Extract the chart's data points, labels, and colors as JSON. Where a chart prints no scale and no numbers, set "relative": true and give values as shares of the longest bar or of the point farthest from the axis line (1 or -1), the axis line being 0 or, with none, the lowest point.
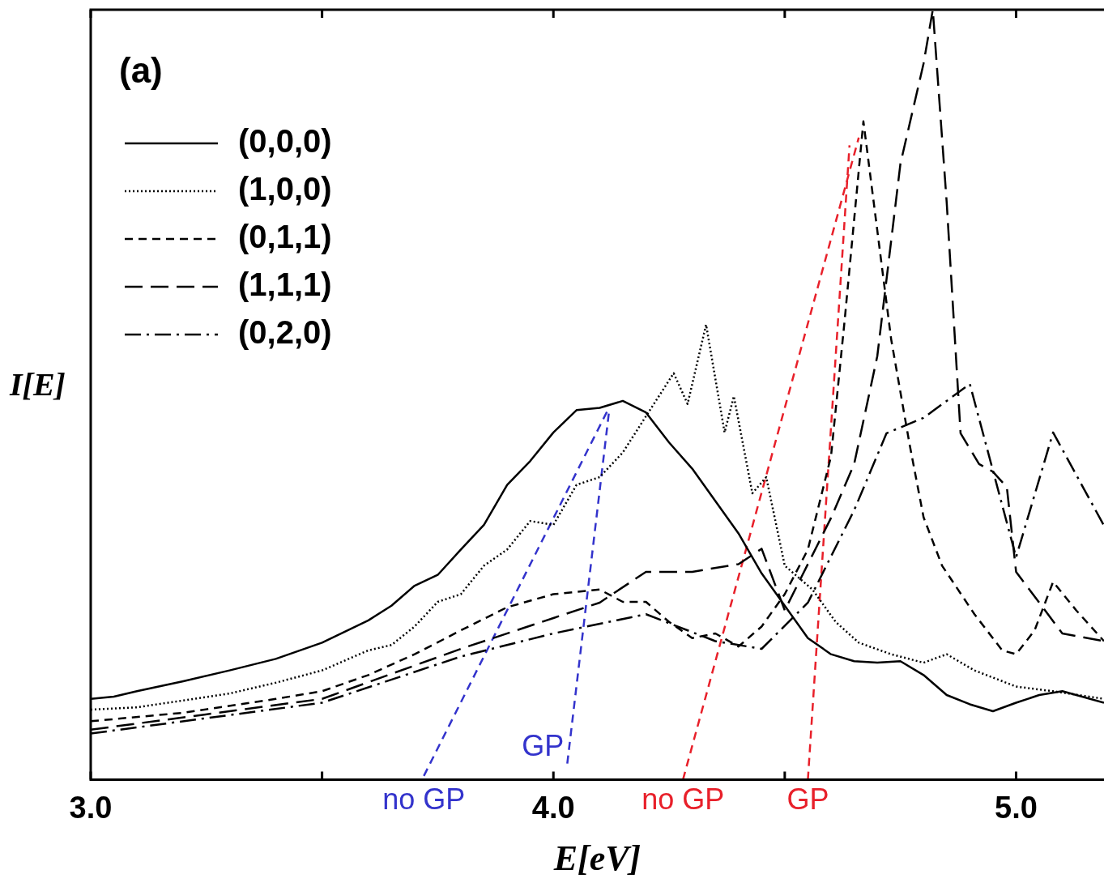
{
  "chart_data": {
    "type": "line",
    "relative": true,
    "xlabel": "E[eV]",
    "ylabel": "I[E]",
    "legend": "top left",
    "grid": false,
    "marker": "none",
    "tick_labels": "x",
    "xlim": [
      3.0,
      5.19
    ],
    "xticks": [
      {
        "value": 3.0,
        "label": "3.0"
      },
      {
        "value": 3.5,
        "label": null
      },
      {
        "value": 4.0,
        "label": "4.0"
      },
      {
        "value": 4.5,
        "label": null
      },
      {
        "value": 5.0,
        "label": "5.0"
      }
    ],
    "annotations": [
      "(a)",
      {
        "text": "no GP",
        "x": 3.72,
        "y": 0
      },
      {
        "text": "GP",
        "x": 4.03,
        "y": 0.021
      },
      {
        "text": "no GP",
        "x": 4.28,
        "y": 0
      },
      {
        "text": "GP",
        "x": 4.55,
        "y": 0
      }
    ],
    "series": [
      {
        "name": "(0,0,0)",
        "color": "#000000",
        "line_style": "solid",
        "x": [
          3.0,
          3.05,
          3.1,
          3.2,
          3.3,
          3.4,
          3.5,
          3.6,
          3.65,
          3.7,
          3.75,
          3.8,
          3.85,
          3.9,
          3.95,
          4.0,
          4.05,
          4.1,
          4.15,
          4.2,
          4.25,
          4.3,
          4.35,
          4.4,
          4.45,
          4.5,
          4.55,
          4.6,
          4.65,
          4.7,
          4.75,
          4.8,
          4.85,
          4.9,
          4.95,
          5.0,
          5.05,
          5.1,
          5.19
        ],
        "values": [
          0.105,
          0.108,
          0.115,
          0.128,
          0.142,
          0.157,
          0.178,
          0.207,
          0.226,
          0.252,
          0.266,
          0.299,
          0.331,
          0.383,
          0.414,
          0.451,
          0.48,
          0.483,
          0.492,
          0.477,
          0.438,
          0.404,
          0.362,
          0.32,
          0.268,
          0.226,
          0.184,
          0.163,
          0.154,
          0.152,
          0.154,
          0.136,
          0.11,
          0.098,
          0.089,
          0.1,
          0.11,
          0.115,
          0.1
        ]
      },
      {
        "name": "(1,0,0)",
        "color": "#000000",
        "line_style": "dotted",
        "x": [
          3.0,
          3.1,
          3.2,
          3.3,
          3.4,
          3.5,
          3.6,
          3.65,
          3.7,
          3.75,
          3.8,
          3.85,
          3.9,
          3.95,
          4.0,
          4.05,
          4.1,
          4.15,
          4.2,
          4.26,
          4.29,
          4.33,
          4.37,
          4.39,
          4.43,
          4.46,
          4.5,
          4.56,
          4.61,
          4.66,
          4.73,
          4.8,
          4.85,
          4.91,
          5.0,
          5.08,
          5.19
        ],
        "values": [
          0.091,
          0.094,
          0.103,
          0.112,
          0.126,
          0.142,
          0.168,
          0.175,
          0.199,
          0.231,
          0.241,
          0.278,
          0.299,
          0.336,
          0.331,
          0.383,
          0.393,
          0.425,
          0.472,
          0.528,
          0.488,
          0.591,
          0.451,
          0.498,
          0.372,
          0.393,
          0.278,
          0.247,
          0.205,
          0.178,
          0.163,
          0.152,
          0.163,
          0.142,
          0.121,
          0.115,
          0.105
        ]
      },
      {
        "name": "(0,1,1)",
        "color": "#000000",
        "line_style": "dashed",
        "x": [
          3.0,
          3.2,
          3.4,
          3.5,
          3.6,
          3.7,
          3.8,
          3.9,
          4.0,
          4.1,
          4.15,
          4.2,
          4.25,
          4.3,
          4.35,
          4.4,
          4.45,
          4.5,
          4.55,
          4.6,
          4.63,
          4.67,
          4.73,
          4.77,
          4.8,
          4.84,
          4.91,
          4.97,
          5.0,
          5.04,
          5.08,
          5.13,
          5.19
        ],
        "values": [
          0.076,
          0.087,
          0.105,
          0.115,
          0.136,
          0.163,
          0.194,
          0.224,
          0.241,
          0.247,
          0.231,
          0.231,
          0.205,
          0.184,
          0.19,
          0.173,
          0.199,
          0.241,
          0.299,
          0.42,
          0.6,
          0.855,
          0.572,
          0.435,
          0.341,
          0.278,
          0.215,
          0.168,
          0.163,
          0.194,
          0.257,
          0.22,
          0.18
        ]
      },
      {
        "name": "(1,1,1)",
        "color": "#000000",
        "line_style": "longdash",
        "x": [
          3.0,
          3.5,
          3.8,
          4.0,
          4.1,
          4.2,
          4.3,
          4.4,
          4.45,
          4.5,
          4.55,
          4.6,
          4.65,
          4.7,
          4.75,
          4.8,
          4.82,
          4.85,
          4.88,
          4.92,
          4.95,
          4.98,
          5.0,
          5.05,
          5.1,
          5.19
        ],
        "values": [
          0.065,
          0.105,
          0.17,
          0.21,
          0.23,
          0.27,
          0.27,
          0.28,
          0.3,
          0.22,
          0.28,
          0.34,
          0.41,
          0.55,
          0.8,
          0.93,
          1.0,
          0.75,
          0.45,
          0.41,
          0.4,
          0.38,
          0.27,
          0.23,
          0.19,
          0.18
        ]
      },
      {
        "name": "(0,2,0)",
        "color": "#000000",
        "line_style": "dashdot",
        "x": [
          3.0,
          3.5,
          3.8,
          4.0,
          4.2,
          4.35,
          4.45,
          4.55,
          4.65,
          4.72,
          4.8,
          4.9,
          5.0,
          5.08,
          5.19
        ],
        "values": [
          0.06,
          0.1,
          0.16,
          0.19,
          0.215,
          0.18,
          0.17,
          0.23,
          0.35,
          0.45,
          0.47,
          0.514,
          0.289,
          0.451,
          0.33
        ]
      },
      {
        "color": "#3333cc",
        "line_style": "dashed",
        "x": [
          3.72,
          4.12
        ],
        "values": [
          0.005,
          0.483
        ]
      },
      {
        "color": "#3333cc",
        "line_style": "dashed",
        "x": [
          4.03,
          4.12
        ],
        "values": [
          0.021,
          0.477
        ]
      },
      {
        "color": "#e8202a",
        "line_style": "dashed",
        "x": [
          4.28,
          4.66
        ],
        "values": [
          0.0,
          0.834
        ]
      },
      {
        "color": "#e8202a",
        "line_style": "dashed",
        "x": [
          4.55,
          4.64
        ],
        "values": [
          0.0,
          0.824
        ]
      }
    ]
  }
}
